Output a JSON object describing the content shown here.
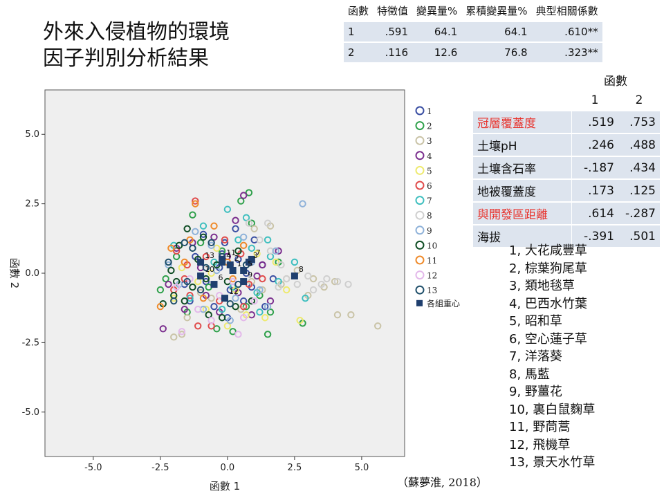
{
  "title_line1": "外來入侵植物的環境",
  "title_line2": "因子判別分析結果",
  "eigen_table": {
    "headers": [
      "函數",
      "特徵值",
      "變異量%",
      "累積變異量%",
      "典型相關係數"
    ],
    "rows": [
      [
        "1",
        ".591",
        "64.1",
        "64.1",
        ".610**"
      ],
      [
        "2",
        ".116",
        "12.6",
        "76.8",
        ".323**"
      ]
    ]
  },
  "coef_table": {
    "header_group": "函數",
    "header_cols": [
      "1",
      "2"
    ],
    "rows": [
      {
        "label": "冠層覆蓋度",
        "v1": ".519",
        "v2": ".753",
        "highlight": true
      },
      {
        "label": "土壤pH",
        "v1": ".246",
        "v2": ".488",
        "highlight": false
      },
      {
        "label": "土壤含石率",
        "v1": "-.187",
        "v2": ".434",
        "highlight": false
      },
      {
        "label": "地被覆蓋度",
        "v1": ".173",
        "v2": ".125",
        "highlight": false
      },
      {
        "label": "與開發區距離",
        "v1": ".614",
        "v2": "-.287",
        "highlight": true
      },
      {
        "label": "海拔",
        "v1": "-.391",
        "v2": ".501",
        "highlight": false
      }
    ],
    "highlight_color": "#e8332d"
  },
  "species_list": [
    "1, 大花咸豐草",
    "2, 棕葉狗尾草",
    "3, 類地毯草",
    "4, 巴西水竹葉",
    "5, 昭和草",
    "6, 空心蓮子草",
    "7, 洋落葵",
    "8, 馬藍",
    "9, 野薑花",
    "10, 裏白鼠麴草",
    "11, 野茼蒿",
    "12, 飛機草",
    "13, 景天水竹草"
  ],
  "citation": "（蘇夢淮, 2018）",
  "chart_data": {
    "type": "scatter",
    "xlabel": "函數 1",
    "ylabel": "函數 2",
    "xlim": [
      -6.8,
      6.6
    ],
    "ylim": [
      -6.6,
      6.6
    ],
    "xticks": [
      "-5.0",
      "-2.5",
      "0.0",
      "2.5",
      "5.0"
    ],
    "yticks": [
      "5.0",
      "2.5",
      "0.0",
      "-2.5",
      "-5.0"
    ],
    "grid": false,
    "plot_background": "#efefef",
    "legend_position": "right",
    "centroid_label": "各組重心",
    "centroid_color": "#1f3f6e",
    "groups": [
      {
        "name": "1",
        "color": "#3a4fa3",
        "centroid": [
          0.2,
          0.1
        ],
        "points": [
          [
            -0.3,
            0.2
          ],
          [
            0.4,
            0.5
          ],
          [
            -0.8,
            -0.3
          ],
          [
            0.9,
            -0.5
          ],
          [
            -0.1,
            1.1
          ],
          [
            0.6,
            -1.0
          ],
          [
            -1.2,
            0.6
          ],
          [
            1.3,
            0.3
          ],
          [
            0.1,
            -0.6
          ],
          [
            -0.5,
            -1.2
          ],
          [
            1.0,
            1.2
          ],
          [
            -1.6,
            -0.4
          ],
          [
            0.3,
            1.6
          ],
          [
            -0.9,
            1.4
          ],
          [
            1.7,
            -0.2
          ],
          [
            0.0,
            -1.6
          ],
          [
            -0.2,
            0.7
          ],
          [
            0.7,
            0.0
          ],
          [
            -1.4,
            -1.0
          ],
          [
            1.4,
            -1.2
          ]
        ]
      },
      {
        "name": "2",
        "color": "#2ea04a",
        "centroid": [
          0.1,
          0.3
        ],
        "points": [
          [
            -1.3,
            2.1
          ],
          [
            0.5,
            2.6
          ],
          [
            -2.3,
            -0.2
          ],
          [
            1.6,
            -1.4
          ],
          [
            -0.4,
            -2.0
          ],
          [
            0.9,
            1.8
          ],
          [
            -1.9,
            0.6
          ],
          [
            1.2,
            -0.8
          ],
          [
            -0.7,
            -0.5
          ],
          [
            2.8,
            -1.8
          ],
          [
            0.2,
            -2.1
          ],
          [
            -1.0,
            1.1
          ],
          [
            1.9,
            0.4
          ],
          [
            -2.5,
            -0.6
          ],
          [
            0.7,
            -1.2
          ],
          [
            1.5,
            -2.2
          ],
          [
            -0.2,
            0.8
          ],
          [
            0.8,
            2.9
          ],
          [
            -1.5,
            -1.4
          ]
        ]
      },
      {
        "name": "3",
        "color": "#c9c3a6",
        "centroid": [
          0.8,
          0.4
        ],
        "points": [
          [
            1.0,
            1.6
          ],
          [
            -2.0,
            -2.3
          ],
          [
            3.2,
            -0.2
          ],
          [
            4.1,
            -1.5
          ],
          [
            5.6,
            -1.9
          ],
          [
            2.6,
            0.1
          ],
          [
            3.6,
            -0.5
          ],
          [
            -1.5,
            -1.6
          ],
          [
            -1.0,
            -0.7
          ],
          [
            1.6,
            1.7
          ],
          [
            0.9,
            -0.3
          ],
          [
            4.6,
            -1.5
          ],
          [
            2.2,
            -0.2
          ],
          [
            -0.6,
            -0.9
          ],
          [
            1.3,
            -0.6
          ],
          [
            3.0,
            -0.8
          ],
          [
            -1.7,
            -2.2
          ],
          [
            4.0,
            -0.3
          ],
          [
            0.5,
            -1.3
          ],
          [
            2.0,
            -0.4
          ]
        ]
      },
      {
        "name": "4",
        "color": "#7b2f8e",
        "centroid": [
          -0.2,
          0.4
        ],
        "points": [
          [
            0.3,
            1.9
          ],
          [
            -0.8,
            -0.8
          ],
          [
            0.9,
            -1.5
          ],
          [
            -1.3,
            1.1
          ],
          [
            1.3,
            0.3
          ],
          [
            -0.3,
            -1.4
          ],
          [
            -2.2,
            -0.4
          ],
          [
            1.6,
            -1.0
          ],
          [
            0.0,
            0.6
          ],
          [
            -1.6,
            -1.3
          ],
          [
            0.6,
            2.8
          ],
          [
            -2.4,
            -2.0
          ],
          [
            1.1,
            -0.1
          ],
          [
            -1.0,
            0.2
          ],
          [
            0.4,
            -0.7
          ],
          [
            -0.5,
            1.3
          ],
          [
            1.9,
            0.8
          ],
          [
            -1.9,
            0.9
          ]
        ]
      },
      {
        "name": "5",
        "color": "#eeea6e",
        "centroid": [
          0.6,
          0.1
        ],
        "points": [
          [
            -0.8,
            -1.3
          ],
          [
            1.4,
            -1.6
          ],
          [
            -1.7,
            0.2
          ],
          [
            2.7,
            -1.7
          ],
          [
            0.3,
            -0.6
          ],
          [
            -0.4,
            0.9
          ],
          [
            1.8,
            0.4
          ],
          [
            -2.0,
            -0.9
          ],
          [
            0.7,
            -1.5
          ],
          [
            1.1,
            0.7
          ],
          [
            -1.1,
            -0.3
          ],
          [
            2.2,
            -0.6
          ],
          [
            0.0,
            -1.9
          ],
          [
            -0.6,
            0.0
          ]
        ]
      },
      {
        "name": "6",
        "color": "#e04c4c",
        "centroid": [
          -0.5,
          -0.4
        ],
        "points": [
          [
            -1.2,
            2.6
          ],
          [
            -1.9,
            0.8
          ],
          [
            -0.6,
            -1.9
          ],
          [
            0.5,
            0.7
          ],
          [
            -1.4,
            -0.8
          ],
          [
            -0.8,
            0.6
          ],
          [
            0.6,
            -1.2
          ],
          [
            -2.0,
            -0.6
          ],
          [
            -0.3,
            -1.0
          ],
          [
            1.3,
            -0.2
          ],
          [
            -1.1,
            -1.9
          ],
          [
            0.1,
            0.3
          ],
          [
            -1.6,
            -0.2
          ],
          [
            0.8,
            -0.4
          ],
          [
            -0.1,
            1.2
          ],
          [
            -1.5,
            0.3
          ]
        ]
      },
      {
        "name": "7",
        "color": "#3fbfbf",
        "centroid": [
          0.9,
          0.5
        ],
        "points": [
          [
            0.7,
            2.0
          ],
          [
            1.5,
            1.2
          ],
          [
            -0.9,
            1.7
          ],
          [
            1.9,
            -0.3
          ],
          [
            0.4,
            1.2
          ],
          [
            -0.2,
            -1.3
          ],
          [
            2.5,
            0.4
          ],
          [
            1.2,
            -1.4
          ],
          [
            -1.4,
            -0.9
          ],
          [
            0.9,
            0.9
          ],
          [
            1.6,
            0.6
          ],
          [
            -0.5,
            0.4
          ],
          [
            0.2,
            -0.5
          ],
          [
            2.9,
            -0.9
          ],
          [
            -2.0,
            1.0
          ],
          [
            1.1,
            -0.7
          ],
          [
            0.0,
            2.3
          ]
        ]
      },
      {
        "name": "8",
        "color": "#cfcfcf",
        "centroid": [
          2.5,
          -0.1
        ],
        "points": [
          [
            3.0,
            -0.1
          ],
          [
            4.1,
            -0.3
          ],
          [
            3.5,
            -0.4
          ],
          [
            2.6,
            -0.4
          ],
          [
            4.5,
            -0.4
          ],
          [
            1.5,
            1.8
          ],
          [
            2.2,
            -0.2
          ],
          [
            1.9,
            -0.5
          ],
          [
            0.8,
            1.8
          ],
          [
            1.2,
            1.2
          ],
          [
            3.2,
            -0.6
          ],
          [
            2.0,
            0.3
          ],
          [
            3.7,
            -0.2
          ],
          [
            1.6,
            0.8
          ],
          [
            0.6,
            1.0
          ]
        ]
      },
      {
        "name": "9",
        "color": "#8fb2d9",
        "centroid": [
          0.6,
          -0.3
        ],
        "points": [
          [
            2.8,
            2.5
          ],
          [
            -1.2,
            1.5
          ],
          [
            0.3,
            -0.9
          ],
          [
            -1.8,
            -0.4
          ],
          [
            1.5,
            -1.2
          ],
          [
            -0.4,
            0.1
          ],
          [
            0.9,
            0.4
          ],
          [
            -0.9,
            -1.3
          ],
          [
            0.6,
            1.3
          ],
          [
            1.8,
            0.8
          ],
          [
            -2.2,
            0.3
          ],
          [
            0.1,
            -1.7
          ],
          [
            1.2,
            -0.6
          ],
          [
            -0.6,
            1.0
          ]
        ]
      },
      {
        "name": "10",
        "color": "#0f4d24",
        "centroid": [
          -1.0,
          -0.1
        ],
        "points": [
          [
            -2.4,
            -1.1
          ],
          [
            -1.8,
            1.0
          ],
          [
            -0.2,
            -1.6
          ],
          [
            -1.3,
            -0.5
          ],
          [
            0.4,
            0.8
          ],
          [
            -2.1,
            0.1
          ],
          [
            -0.9,
            1.3
          ],
          [
            -1.6,
            -1.0
          ],
          [
            0.0,
            -0.3
          ],
          [
            -0.7,
            -1.5
          ],
          [
            -1.1,
            0.5
          ],
          [
            0.3,
            -1.2
          ],
          [
            -2.0,
            -0.8
          ],
          [
            -1.5,
            1.6
          ],
          [
            -0.4,
            0.3
          ],
          [
            -1.9,
            -0.3
          ],
          [
            0.9,
            -1.0
          ],
          [
            -0.8,
            -0.2
          ]
        ]
      },
      {
        "name": "11",
        "color": "#ef8a2a",
        "centroid": [
          -0.2,
          0.5
        ],
        "points": [
          [
            -1.2,
            2.5
          ],
          [
            -2.5,
            -1.2
          ],
          [
            -0.5,
            1.7
          ],
          [
            0.2,
            -0.2
          ],
          [
            -1.6,
            0.4
          ],
          [
            0.6,
            1.0
          ],
          [
            -0.9,
            -0.9
          ],
          [
            -2.1,
            0.9
          ],
          [
            0.0,
            0.4
          ],
          [
            -1.4,
            1.2
          ]
        ]
      },
      {
        "name": "12",
        "color": "#e3b8ea",
        "centroid": [
          -0.1,
          -0.9
        ],
        "points": [
          [
            -1.7,
            -2.1
          ],
          [
            -0.3,
            -0.8
          ],
          [
            -1.1,
            -1.3
          ],
          [
            0.6,
            -1.6
          ],
          [
            -1.9,
            -0.5
          ],
          [
            0.2,
            -0.3
          ],
          [
            -0.6,
            -1.7
          ],
          [
            1.0,
            -1.0
          ],
          [
            -1.4,
            -0.2
          ],
          [
            0.4,
            -2.2
          ]
        ]
      },
      {
        "name": "13",
        "color": "#1f4f6a",
        "centroid": [
          -1.0,
          0.4
        ],
        "points": [
          [
            -1.3,
            0.9
          ],
          [
            -2.0,
            -1.0
          ],
          [
            -0.2,
            0.6
          ],
          [
            -1.6,
            1.1
          ],
          [
            0.4,
            -0.4
          ],
          [
            -1.0,
            -0.6
          ],
          [
            -0.6,
            1.1
          ],
          [
            -2.2,
            0.4
          ],
          [
            0.1,
            -1.1
          ],
          [
            -1.5,
            -0.3
          ],
          [
            -0.8,
            0.2
          ],
          [
            0.7,
            0.3
          ]
        ]
      }
    ],
    "centroid_labels": [
      {
        "text": "1",
        "at": [
          0.2,
          0.1
        ]
      },
      {
        "text": "2",
        "at": [
          0.1,
          0.3
        ]
      },
      {
        "text": "3",
        "at": [
          0.8,
          0.4
        ]
      },
      {
        "text": "4",
        "at": [
          -0.2,
          0.4
        ]
      },
      {
        "text": "5",
        "at": [
          0.6,
          0.1
        ]
      },
      {
        "text": "6",
        "at": [
          -0.5,
          -0.4
        ]
      },
      {
        "text": "7",
        "at": [
          0.9,
          0.5
        ]
      },
      {
        "text": "8",
        "at": [
          2.5,
          -0.1
        ]
      },
      {
        "text": "9",
        "at": [
          0.6,
          -0.3
        ]
      },
      {
        "text": "10",
        "at": [
          -1.0,
          -0.1
        ]
      },
      {
        "text": "11",
        "at": [
          -0.2,
          0.5
        ]
      },
      {
        "text": "12",
        "at": [
          -0.1,
          -0.9
        ]
      },
      {
        "text": "13",
        "at": [
          -1.0,
          0.4
        ]
      }
    ]
  }
}
